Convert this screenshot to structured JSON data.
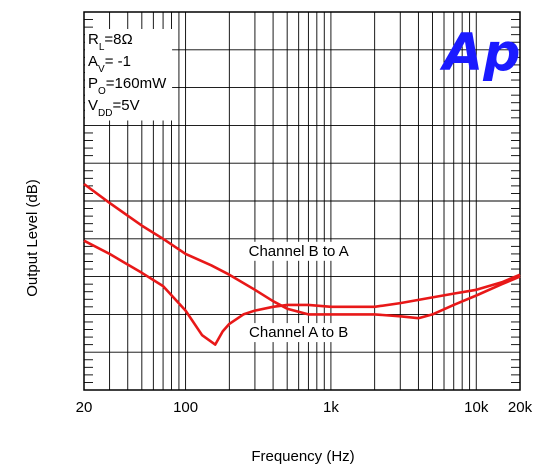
{
  "chart_data": {
    "type": "line",
    "title": "",
    "xlabel": "Frequency (Hz)",
    "ylabel": "Output Level (dB)",
    "x_scale": "log",
    "xlim": [
      20,
      20000
    ],
    "x_ticks": [
      {
        "value": 20,
        "label": "20"
      },
      {
        "value": 100,
        "label": "100"
      },
      {
        "value": 1000,
        "label": "1k"
      },
      {
        "value": 10000,
        "label": "10k"
      },
      {
        "value": 20000,
        "label": "20k"
      }
    ],
    "y_divisions": 10,
    "grid": true,
    "logo": "Ap",
    "conditions": [
      {
        "main": "R",
        "sub": "L",
        "rest": "=8Ω"
      },
      {
        "main": "A",
        "sub": "V",
        "rest": "= -1"
      },
      {
        "main": "P",
        "sub": "O",
        "rest": "=160mW"
      },
      {
        "main": "V",
        "sub": "DD",
        "rest": "=5V"
      }
    ],
    "series": [
      {
        "name": "Channel B to A",
        "color": "#e81818",
        "label_at": {
          "x": 600,
          "y": 3.55
        },
        "x": [
          20,
          30,
          50,
          70,
          100,
          150,
          200,
          300,
          400,
          500,
          700,
          1000,
          1500,
          2000,
          3000,
          4000,
          5000,
          7000,
          10000,
          15000,
          20000
        ],
        "y": [
          5.45,
          4.95,
          4.35,
          4.0,
          3.6,
          3.3,
          3.05,
          2.65,
          2.35,
          2.15,
          2.0,
          2.0,
          2.0,
          2.0,
          1.95,
          1.9,
          2.0,
          2.25,
          2.5,
          2.8,
          3.0
        ]
      },
      {
        "name": "Channel A to B",
        "color": "#e81818",
        "label_at": {
          "x": 600,
          "y": 1.4
        },
        "x": [
          20,
          30,
          50,
          70,
          100,
          130,
          160,
          180,
          200,
          250,
          300,
          400,
          500,
          700,
          1000,
          2000,
          3000,
          5000,
          7000,
          10000,
          15000,
          20000
        ],
        "y": [
          3.95,
          3.6,
          3.1,
          2.75,
          2.1,
          1.45,
          1.2,
          1.55,
          1.75,
          2.0,
          2.1,
          2.2,
          2.25,
          2.25,
          2.2,
          2.2,
          2.3,
          2.45,
          2.55,
          2.65,
          2.85,
          3.05
        ]
      }
    ]
  }
}
